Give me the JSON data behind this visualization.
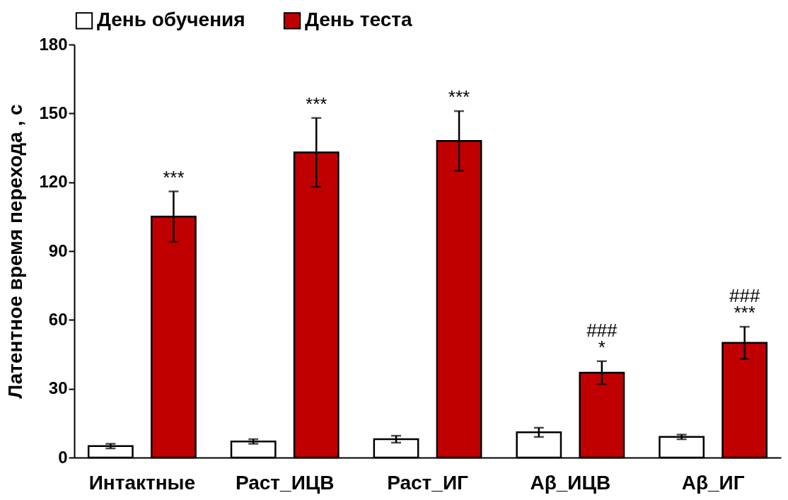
{
  "chart_data": {
    "type": "bar",
    "ylabel": "Латентное время перехода , с",
    "categories": [
      "Интактные",
      "Раст_ИЦВ",
      "Раст_ИГ",
      "Aβ_ИЦВ",
      "Aβ_ИГ"
    ],
    "series": [
      {
        "name": "День обучения",
        "color": "#ffffff",
        "values": [
          5,
          7,
          8,
          11,
          9
        ],
        "errors": [
          1,
          1,
          1.5,
          2,
          1
        ]
      },
      {
        "name": "День теста",
        "color": "#c00000",
        "values": [
          105,
          133,
          138,
          37,
          50
        ],
        "errors": [
          11,
          15,
          13,
          5,
          7
        ],
        "value_labels": [
          "***",
          "***",
          "***",
          "###\n*",
          "###\n***"
        ]
      }
    ],
    "ylim": [
      0,
      180
    ],
    "yticks": [
      0,
      30,
      60,
      90,
      120,
      150,
      180
    ],
    "grid": false,
    "legend": "top"
  }
}
